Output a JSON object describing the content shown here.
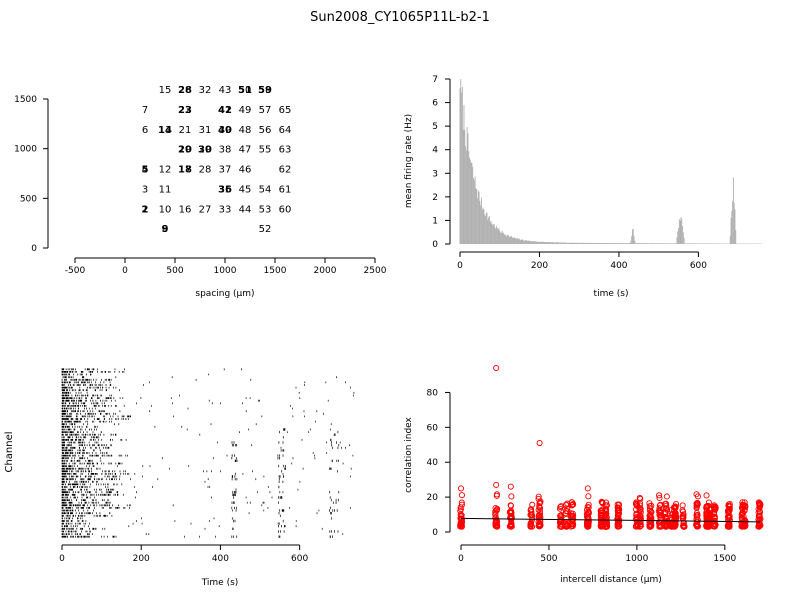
{
  "title": "Sun2008_CY1065P11L-b2-1",
  "chart_data": [
    {
      "type": "scatter",
      "panel": "electrode-layout",
      "xlabel": "spacing (µm)",
      "ylabel": "",
      "xlim": [
        -500,
        2500
      ],
      "ylim": [
        0,
        1500
      ],
      "x_ticks": [
        "-500",
        "0",
        "500",
        "1000",
        "1500",
        "2000",
        "2500"
      ],
      "y_ticks": [
        "0",
        "500",
        "1000",
        "1500"
      ],
      "labels": [
        {
          "text": "15",
          "x": 400,
          "y": 1600
        },
        {
          "text": "26",
          "x": 600,
          "y": 1600
        },
        {
          "text": "28",
          "x": 600,
          "y": 1600
        },
        {
          "text": "32",
          "x": 800,
          "y": 1600
        },
        {
          "text": "43",
          "x": 1000,
          "y": 1600
        },
        {
          "text": "50",
          "x": 1200,
          "y": 1600
        },
        {
          "text": "51",
          "x": 1200,
          "y": 1600
        },
        {
          "text": "58",
          "x": 1400,
          "y": 1600
        },
        {
          "text": "59",
          "x": 1400,
          "y": 1600
        },
        {
          "text": "7",
          "x": 200,
          "y": 1400
        },
        {
          "text": "22",
          "x": 600,
          "y": 1400
        },
        {
          "text": "23",
          "x": 600,
          "y": 1400
        },
        {
          "text": "41",
          "x": 1000,
          "y": 1400
        },
        {
          "text": "42",
          "x": 1000,
          "y": 1400
        },
        {
          "text": "49",
          "x": 1200,
          "y": 1400
        },
        {
          "text": "57",
          "x": 1400,
          "y": 1400
        },
        {
          "text": "65",
          "x": 1600,
          "y": 1400
        },
        {
          "text": "6",
          "x": 200,
          "y": 1200
        },
        {
          "text": "13",
          "x": 400,
          "y": 1200
        },
        {
          "text": "14",
          "x": 400,
          "y": 1200
        },
        {
          "text": "21",
          "x": 600,
          "y": 1200
        },
        {
          "text": "31",
          "x": 800,
          "y": 1200
        },
        {
          "text": "39",
          "x": 1000,
          "y": 1200
        },
        {
          "text": "40",
          "x": 1000,
          "y": 1200
        },
        {
          "text": "48",
          "x": 1200,
          "y": 1200
        },
        {
          "text": "56",
          "x": 1400,
          "y": 1200
        },
        {
          "text": "64",
          "x": 1600,
          "y": 1200
        },
        {
          "text": "19",
          "x": 600,
          "y": 1000
        },
        {
          "text": "20",
          "x": 600,
          "y": 1000
        },
        {
          "text": "29",
          "x": 800,
          "y": 1000
        },
        {
          "text": "30",
          "x": 800,
          "y": 1000
        },
        {
          "text": "38",
          "x": 1000,
          "y": 1000
        },
        {
          "text": "47",
          "x": 1200,
          "y": 1000
        },
        {
          "text": "55",
          "x": 1400,
          "y": 1000
        },
        {
          "text": "63",
          "x": 1600,
          "y": 1000
        },
        {
          "text": "4",
          "x": 200,
          "y": 800
        },
        {
          "text": "5",
          "x": 200,
          "y": 800
        },
        {
          "text": "12",
          "x": 400,
          "y": 800
        },
        {
          "text": "17",
          "x": 600,
          "y": 800
        },
        {
          "text": "18",
          "x": 600,
          "y": 800
        },
        {
          "text": "28",
          "x": 800,
          "y": 800
        },
        {
          "text": "37",
          "x": 1000,
          "y": 800
        },
        {
          "text": "46",
          "x": 1200,
          "y": 800
        },
        {
          "text": "62",
          "x": 1600,
          "y": 800
        },
        {
          "text": "3",
          "x": 200,
          "y": 600
        },
        {
          "text": "11",
          "x": 400,
          "y": 600
        },
        {
          "text": "35",
          "x": 1000,
          "y": 600
        },
        {
          "text": "36",
          "x": 1000,
          "y": 600
        },
        {
          "text": "45",
          "x": 1200,
          "y": 600
        },
        {
          "text": "54",
          "x": 1400,
          "y": 600
        },
        {
          "text": "61",
          "x": 1600,
          "y": 600
        },
        {
          "text": "1",
          "x": 200,
          "y": 400
        },
        {
          "text": "2",
          "x": 200,
          "y": 400
        },
        {
          "text": "10",
          "x": 400,
          "y": 400
        },
        {
          "text": "16",
          "x": 600,
          "y": 400
        },
        {
          "text": "27",
          "x": 800,
          "y": 400
        },
        {
          "text": "33",
          "x": 1000,
          "y": 400
        },
        {
          "text": "44",
          "x": 1200,
          "y": 400
        },
        {
          "text": "53",
          "x": 1400,
          "y": 400
        },
        {
          "text": "60",
          "x": 1600,
          "y": 400
        },
        {
          "text": "8",
          "x": 400,
          "y": 200
        },
        {
          "text": "9",
          "x": 400,
          "y": 200
        },
        {
          "text": "52",
          "x": 1400,
          "y": 200
        }
      ]
    },
    {
      "type": "bar",
      "panel": "firing-rate",
      "xlabel": "time (s)",
      "ylabel": "mean firing rate (Hz)",
      "xlim": [
        0,
        760
      ],
      "ylim": [
        0,
        7
      ],
      "x_ticks": [
        "0",
        "200",
        "400",
        "600"
      ],
      "y_ticks": [
        "0",
        "1",
        "2",
        "3",
        "4",
        "5",
        "6",
        "7"
      ],
      "bar_color": "#b0b0b0",
      "decay": {
        "start_time": 0,
        "amplitude": 6.8,
        "tau_s": 38,
        "baseline": 0.1
      },
      "bursts": [
        {
          "start": 430,
          "end": 440,
          "peak": 0.8
        },
        {
          "start": 545,
          "end": 565,
          "peak": 1.5
        },
        {
          "start": 680,
          "end": 695,
          "peak": 3.1
        }
      ]
    },
    {
      "type": "scatter",
      "panel": "raster",
      "xlabel": "Time (s)",
      "ylabel": "Channel",
      "xlim": [
        0,
        760
      ],
      "x_ticks": [
        "0",
        "200",
        "400",
        "600"
      ],
      "channels": 65,
      "early_activity_end_s": 120,
      "bursts": [
        {
          "time_start": 428,
          "time_end": 442
        },
        {
          "time_start": 545,
          "time_end": 565
        },
        {
          "time_start": 675,
          "time_end": 700
        }
      ]
    },
    {
      "type": "scatter",
      "panel": "correlation",
      "xlabel": "intercell distance (µm)",
      "ylabel": "correlation index",
      "xlim": [
        0,
        1700
      ],
      "ylim": [
        0,
        90
      ],
      "x_ticks": [
        "0",
        "500",
        "1000",
        "1500"
      ],
      "y_ticks": [
        "0",
        "20",
        "40",
        "60",
        "80"
      ],
      "point_color": "#ff0000",
      "fit_line": {
        "x": [
          0,
          1700
        ],
        "y": [
          7.8,
          5.8
        ]
      },
      "distance_columns": [
        0,
        200,
        283,
        400,
        447,
        566,
        600,
        632,
        721,
        800,
        825,
        894,
        1000,
        1020,
        1077,
        1131,
        1166,
        1200,
        1217,
        1265,
        1342,
        1400,
        1414,
        1442,
        1523,
        1600,
        1612,
        1697
      ],
      "outliers": [
        {
          "x": 200,
          "y": 94
        },
        {
          "x": 447,
          "y": 51
        },
        {
          "x": 200,
          "y": 27
        },
        {
          "x": 0,
          "y": 25
        },
        {
          "x": 721,
          "y": 25
        },
        {
          "x": 283,
          "y": 26
        }
      ]
    }
  ]
}
